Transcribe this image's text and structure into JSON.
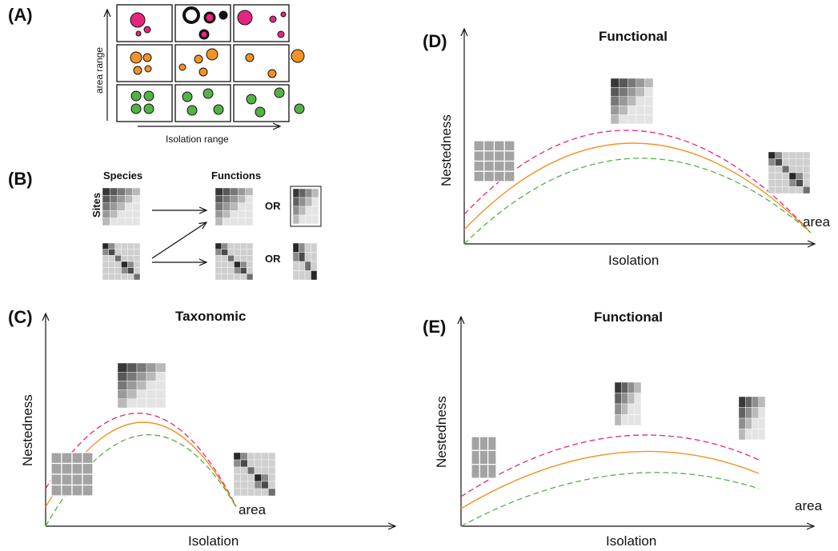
{
  "colors": {
    "pink": "#e6257f",
    "orange": "#f39325",
    "green": "#54b146",
    "black": "#111111"
  },
  "panelA": {
    "label": "(A)",
    "y_axis_label": "area range",
    "x_axis_label": "Isolation range"
  },
  "panelB": {
    "label": "(B)",
    "species_header": "Species",
    "functions_header": "Functions",
    "sites_label": "Sites",
    "or_top": "OR",
    "or_bottom": "OR"
  },
  "panelC": {
    "label": "(C)",
    "title": "Taxonomic",
    "ylabel": "Nestedness",
    "xlabel": "Isolation",
    "curve_label": "area"
  },
  "panelD": {
    "label": "(D)",
    "title": "Functional",
    "ylabel": "Nestedness",
    "xlabel": "Isolation",
    "curve_label": "area"
  },
  "panelE": {
    "label": "(E)",
    "title": "Functional",
    "ylabel": "Nestedness",
    "xlabel": "Isolation",
    "curve_label": "area"
  }
}
